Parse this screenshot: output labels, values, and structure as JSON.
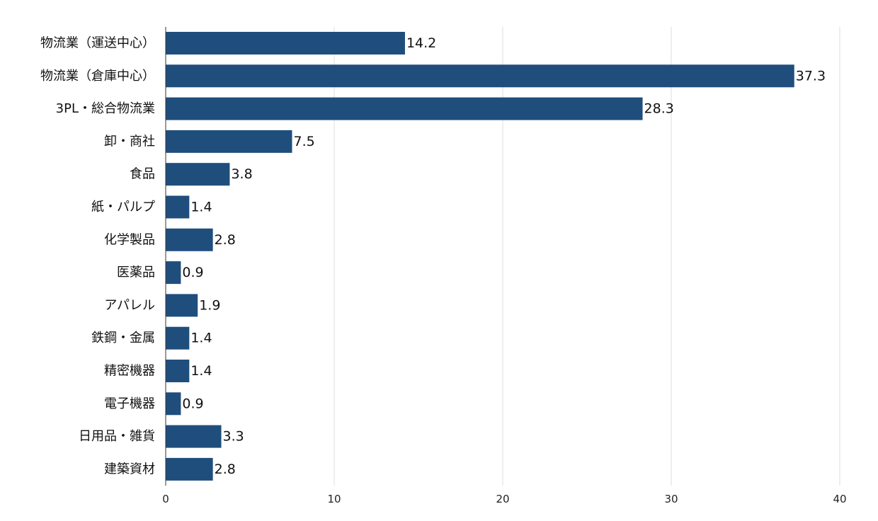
{
  "chart_data": {
    "type": "bar",
    "orientation": "horizontal",
    "categories": [
      "物流業（運送中心）",
      "物流業（倉庫中心）",
      "3PL・総合物流業",
      "卸・商社",
      "食品",
      "紙・パルプ",
      "化学製品",
      "医薬品",
      "アパレル",
      "鉄鋼・金属",
      "精密機器",
      "電子機器",
      "日用品・雑貨",
      "建築資材"
    ],
    "values": [
      14.2,
      37.3,
      28.3,
      7.5,
      3.8,
      1.4,
      2.8,
      0.9,
      1.9,
      1.4,
      1.4,
      0.9,
      3.3,
      2.8
    ],
    "value_labels": [
      "14.2",
      "37.3",
      "28.3",
      "7.5",
      "3.8",
      "1.4",
      "2.8",
      "0.9",
      "1.9",
      "1.4",
      "1.4",
      "0.9",
      "3.3",
      "2.8"
    ],
    "xlim": [
      0,
      40
    ],
    "x_ticks": [
      0,
      10,
      20,
      30,
      40
    ],
    "x_tick_labels": [
      "0",
      "10",
      "20",
      "30",
      "40"
    ],
    "title": "",
    "xlabel": "",
    "ylabel": "",
    "grid": "vertical",
    "legend": "none",
    "bar_color": "#1f4e7d"
  }
}
